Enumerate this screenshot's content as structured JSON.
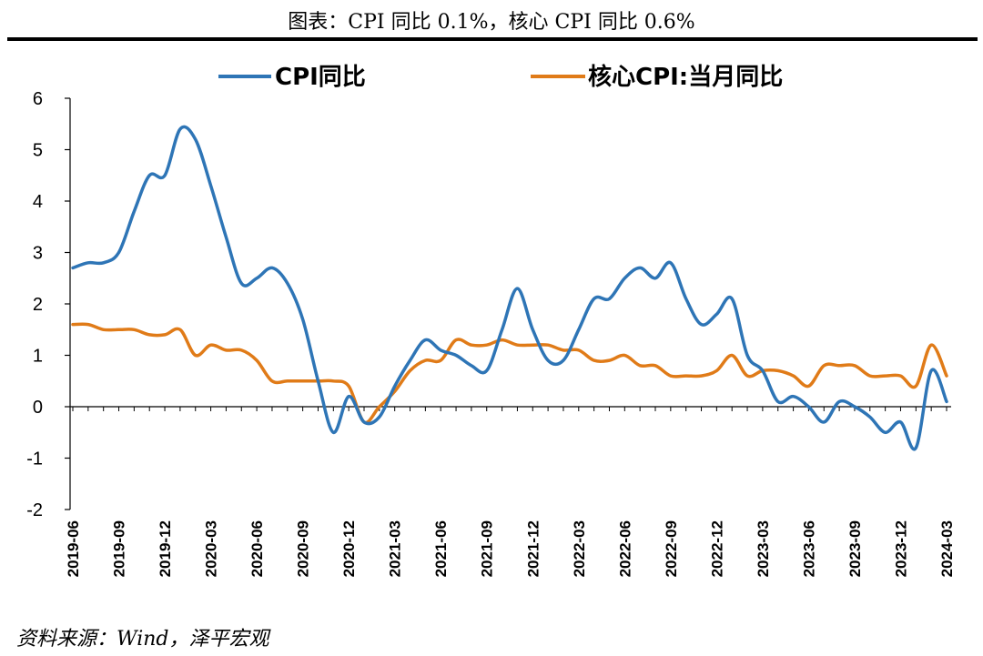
{
  "chart_data": {
    "type": "line",
    "title": "图表：CPI 同比 0.1%，核心 CPI 同比 0.6%",
    "xlabel": "",
    "ylabel": "",
    "ylim": [
      -2,
      6
    ],
    "yticks": [
      -2,
      -1,
      0,
      1,
      2,
      3,
      4,
      5,
      6
    ],
    "grid": false,
    "legend_position": "top",
    "x_tick_labels": [
      "2019-06",
      "2019-09",
      "2019-12",
      "2020-03",
      "2020-06",
      "2020-09",
      "2020-12",
      "2021-03",
      "2021-06",
      "2021-09",
      "2021-12",
      "2022-03",
      "2022-06",
      "2022-09",
      "2022-12",
      "2023-03",
      "2023-06",
      "2023-09",
      "2023-12",
      "2024-03"
    ],
    "x": [
      "2019-06",
      "2019-07",
      "2019-08",
      "2019-09",
      "2019-10",
      "2019-11",
      "2019-12",
      "2020-01",
      "2020-02",
      "2020-03",
      "2020-04",
      "2020-05",
      "2020-06",
      "2020-07",
      "2020-08",
      "2020-09",
      "2020-10",
      "2020-11",
      "2020-12",
      "2021-01",
      "2021-02",
      "2021-03",
      "2021-04",
      "2021-05",
      "2021-06",
      "2021-07",
      "2021-08",
      "2021-09",
      "2021-10",
      "2021-11",
      "2021-12",
      "2022-01",
      "2022-02",
      "2022-03",
      "2022-04",
      "2022-05",
      "2022-06",
      "2022-07",
      "2022-08",
      "2022-09",
      "2022-10",
      "2022-11",
      "2022-12",
      "2023-01",
      "2023-02",
      "2023-03",
      "2023-04",
      "2023-05",
      "2023-06",
      "2023-07",
      "2023-08",
      "2023-09",
      "2023-10",
      "2023-11",
      "2023-12",
      "2024-01",
      "2024-02",
      "2024-03"
    ],
    "series": [
      {
        "name": "CPI同比",
        "color": "#2e75b6",
        "values": [
          2.7,
          2.8,
          2.8,
          3.0,
          3.8,
          4.5,
          4.5,
          5.4,
          5.2,
          4.3,
          3.3,
          2.4,
          2.5,
          2.7,
          2.4,
          1.7,
          0.5,
          -0.5,
          0.2,
          -0.3,
          -0.2,
          0.4,
          0.9,
          1.3,
          1.1,
          1.0,
          0.8,
          0.7,
          1.5,
          2.3,
          1.5,
          0.9,
          0.9,
          1.5,
          2.1,
          2.1,
          2.5,
          2.7,
          2.5,
          2.8,
          2.1,
          1.6,
          1.8,
          2.1,
          1.0,
          0.7,
          0.1,
          0.2,
          0.0,
          -0.3,
          0.1,
          0.0,
          -0.2,
          -0.5,
          -0.3,
          -0.8,
          0.7,
          0.1
        ]
      },
      {
        "name": "核心CPI:当月同比",
        "color": "#e07b18",
        "values": [
          1.6,
          1.6,
          1.5,
          1.5,
          1.5,
          1.4,
          1.4,
          1.5,
          1.0,
          1.2,
          1.1,
          1.1,
          0.9,
          0.5,
          0.5,
          0.5,
          0.5,
          0.5,
          0.4,
          -0.3,
          0.0,
          0.3,
          0.7,
          0.9,
          0.9,
          1.3,
          1.2,
          1.2,
          1.3,
          1.2,
          1.2,
          1.2,
          1.1,
          1.1,
          0.9,
          0.9,
          1.0,
          0.8,
          0.8,
          0.6,
          0.6,
          0.6,
          0.7,
          1.0,
          0.6,
          0.7,
          0.7,
          0.6,
          0.4,
          0.8,
          0.8,
          0.8,
          0.6,
          0.6,
          0.6,
          0.4,
          1.2,
          0.6
        ]
      }
    ]
  },
  "source": "资料来源：Wind，泽平宏观"
}
